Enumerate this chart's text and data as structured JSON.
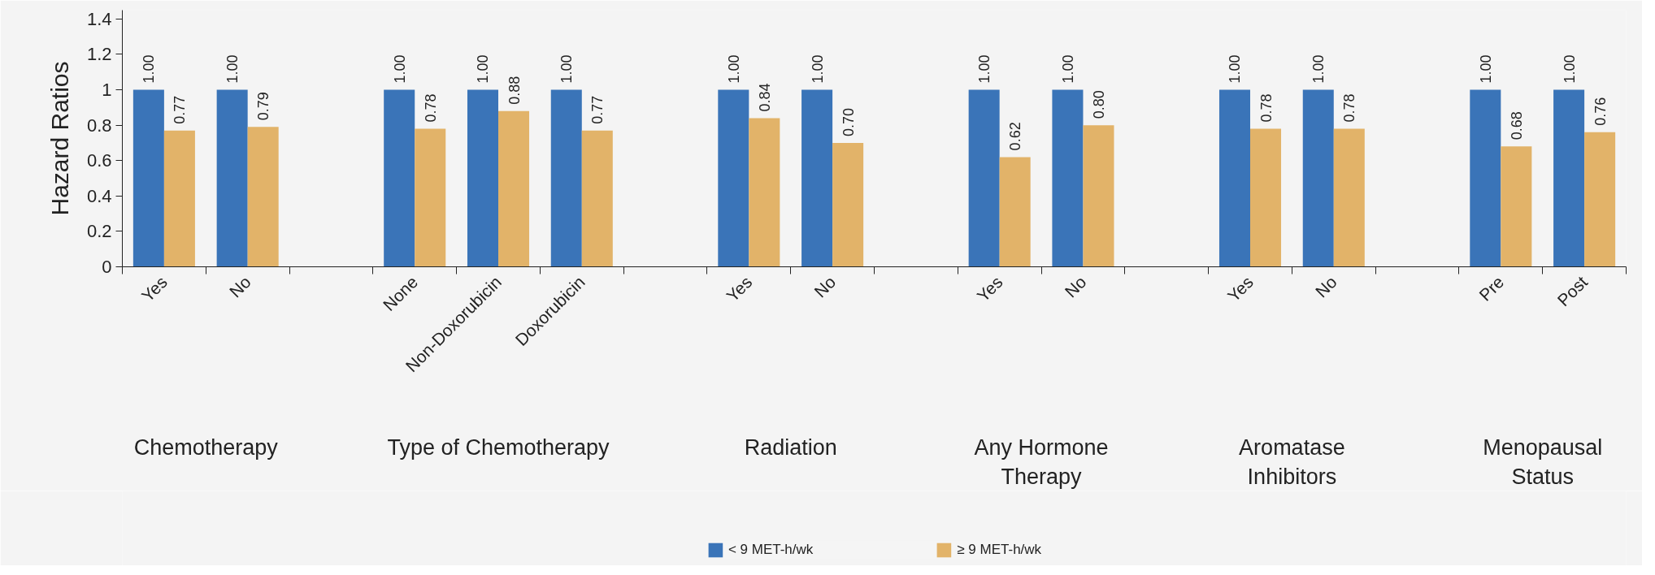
{
  "chart_data": {
    "type": "bar",
    "ylabel": "Hazard Ratios",
    "categories": [
      "Yes",
      "No",
      null,
      "None",
      "Non-Doxorubicin",
      "Doxorubicin",
      null,
      "Yes",
      "No",
      null,
      "Yes",
      "No",
      null,
      "Yes",
      "No",
      null,
      "Pre",
      "Post"
    ],
    "series": [
      {
        "name": "< 9 MET-h/wk",
        "color": "#3a74b8",
        "values": [
          1,
          1,
          null,
          1,
          1,
          1,
          null,
          1,
          1,
          null,
          1,
          1,
          null,
          1,
          1,
          null,
          1,
          1
        ],
        "value_labels": [
          "1.00",
          "1.00",
          null,
          "1.00",
          "1.00",
          "1.00",
          null,
          "1.00",
          "1.00",
          null,
          "1.00",
          "1.00",
          null,
          "1.00",
          "1.00",
          null,
          "1.00",
          "1.00"
        ]
      },
      {
        "name": "≥ 9 MET-h/wk",
        "color": "#e2b369",
        "values": [
          0.77,
          0.79,
          null,
          0.78,
          0.88,
          0.77,
          null,
          0.84,
          0.7,
          null,
          0.62,
          0.8,
          null,
          0.78,
          0.78,
          null,
          0.68,
          0.76
        ],
        "value_labels": [
          "0.77",
          "0.79",
          null,
          "0.78",
          "0.88",
          "0.77",
          null,
          "0.84",
          "0.70",
          null,
          "0.62",
          "0.80",
          null,
          "0.78",
          "0.78",
          null,
          "0.68",
          "0.76"
        ]
      }
    ],
    "annotations": [
      "Chemotherapy",
      "Type of Chemotherapy",
      "Radiation",
      "Any Hormone\nTherapy",
      "Aromatase\nInhibitors",
      "Menopausal\nStatus"
    ],
    "ylim": [
      0,
      1.45
    ],
    "yticks": [
      0,
      0.2,
      0.4,
      0.6,
      0.8,
      1,
      1.2,
      1.4
    ],
    "legend": "bottom"
  }
}
